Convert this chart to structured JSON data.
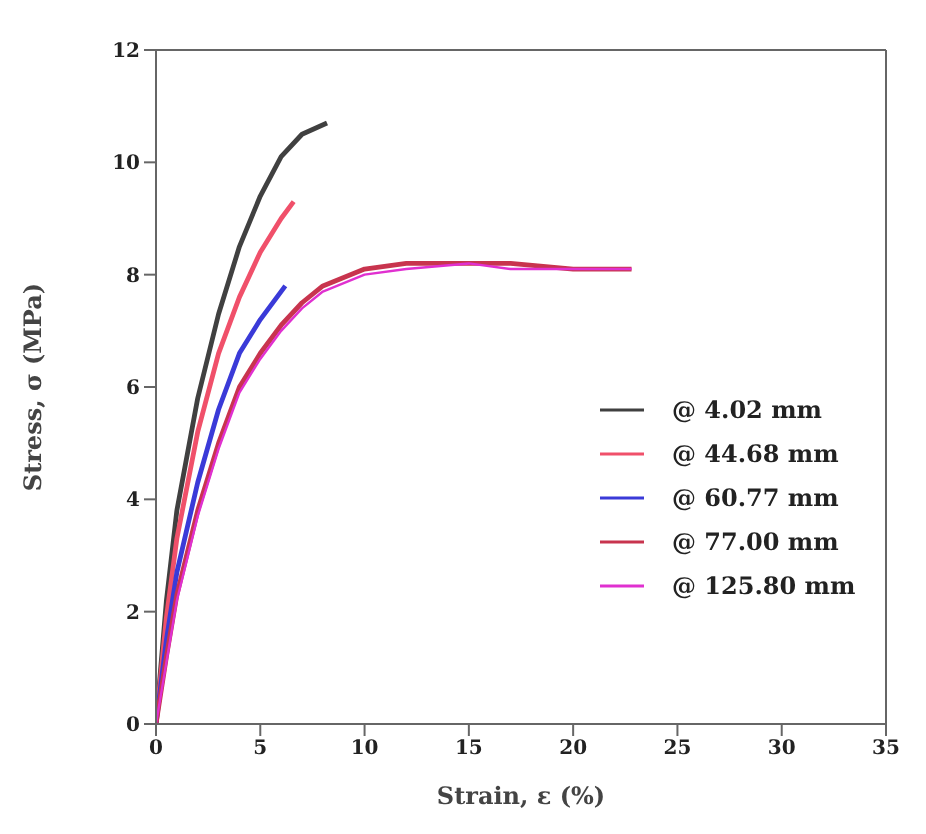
{
  "chart_data": {
    "type": "line",
    "xlabel": "Strain, ε (%)",
    "ylabel": "Stress, σ (MPa)",
    "xlim": [
      0,
      35
    ],
    "xticks": [
      0,
      5,
      10,
      15,
      20,
      25,
      30,
      35
    ],
    "ylim": [
      0,
      12
    ],
    "yticks": [
      0,
      2,
      4,
      6,
      8,
      10,
      12
    ],
    "grid": false,
    "legend": "right",
    "marker": "none",
    "line_style": "solid",
    "series": [
      {
        "name": "@ 4.02 mm",
        "color": "#404040",
        "x": [
          0,
          0.5,
          1,
          2,
          3,
          4,
          5,
          6,
          7,
          8.2
        ],
        "values": [
          0,
          2.2,
          3.8,
          5.8,
          7.3,
          8.5,
          9.4,
          10.1,
          10.5,
          10.7
        ]
      },
      {
        "name": "@ 44.68 mm",
        "color": "#f0506a",
        "x": [
          0,
          0.5,
          1,
          2,
          3,
          4,
          5,
          6,
          6.6
        ],
        "values": [
          0,
          1.9,
          3.3,
          5.2,
          6.6,
          7.6,
          8.4,
          9.0,
          9.3
        ]
      },
      {
        "name": "@ 60.77 mm",
        "color": "#3a3ad8",
        "x": [
          0,
          0.5,
          1,
          2,
          3,
          4,
          5,
          6.2
        ],
        "values": [
          0,
          1.5,
          2.7,
          4.3,
          5.6,
          6.6,
          7.2,
          7.8
        ]
      },
      {
        "name": "@ 77.00 mm",
        "color": "#c8344e",
        "x": [
          0,
          0.5,
          1,
          2,
          3,
          4,
          5,
          6,
          7,
          8,
          10,
          12,
          15,
          17,
          20,
          22.8
        ],
        "values": [
          0,
          1.2,
          2.3,
          3.8,
          5.0,
          6.0,
          6.6,
          7.1,
          7.5,
          7.8,
          8.1,
          8.2,
          8.2,
          8.2,
          8.1,
          8.1
        ]
      },
      {
        "name": "@ 125.80 mm",
        "color": "#e030d0",
        "x": [
          0,
          0.5,
          1,
          2,
          3,
          4,
          5,
          6,
          7,
          8,
          10,
          12,
          15,
          17,
          20,
          22.8
        ],
        "values": [
          0,
          1.1,
          2.2,
          3.7,
          4.9,
          5.9,
          6.5,
          7.0,
          7.4,
          7.7,
          8.0,
          8.1,
          8.2,
          8.1,
          8.1,
          8.1
        ]
      }
    ]
  }
}
